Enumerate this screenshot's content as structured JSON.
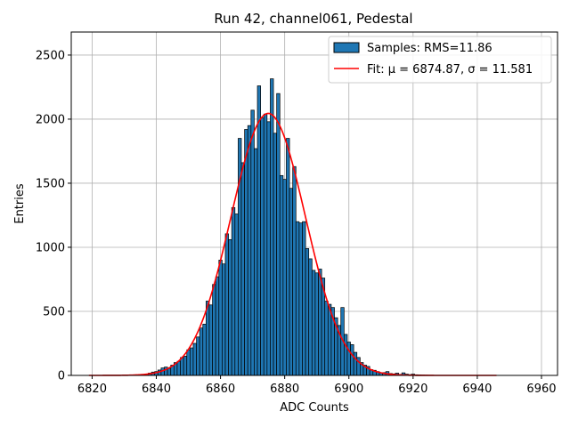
{
  "chart_data": {
    "type": "bar",
    "title": "Run 42, channel061, Pedestal",
    "xlabel": "ADC Counts",
    "ylabel": "Entries",
    "xlim": [
      6813.5,
      6965
    ],
    "ylim": [
      0,
      2680
    ],
    "xticks": [
      6820,
      6840,
      6860,
      6880,
      6900,
      6920,
      6940,
      6960
    ],
    "yticks": [
      0,
      500,
      1000,
      1500,
      2000,
      2500
    ],
    "grid": true,
    "legend_position": "top-right",
    "bin_width": 1,
    "histogram": {
      "name": "Samples: RMS=11.86",
      "color": "#1f77b4",
      "edge_color": "#000000",
      "bins": [
        [
          6835,
          5
        ],
        [
          6836,
          8
        ],
        [
          6837,
          10
        ],
        [
          6838,
          18
        ],
        [
          6839,
          26
        ],
        [
          6840,
          30
        ],
        [
          6841,
          42
        ],
        [
          6842,
          58
        ],
        [
          6843,
          65
        ],
        [
          6844,
          55
        ],
        [
          6845,
          80
        ],
        [
          6846,
          100
        ],
        [
          6847,
          110
        ],
        [
          6848,
          140
        ],
        [
          6849,
          150
        ],
        [
          6850,
          200
        ],
        [
          6851,
          215
        ],
        [
          6852,
          250
        ],
        [
          6853,
          300
        ],
        [
          6854,
          370
        ],
        [
          6855,
          400
        ],
        [
          6856,
          580
        ],
        [
          6857,
          550
        ],
        [
          6858,
          710
        ],
        [
          6859,
          770
        ],
        [
          6860,
          900
        ],
        [
          6861,
          870
        ],
        [
          6862,
          1105
        ],
        [
          6863,
          1060
        ],
        [
          6864,
          1310
        ],
        [
          6865,
          1260
        ],
        [
          6866,
          1850
        ],
        [
          6867,
          1660
        ],
        [
          6868,
          1920
        ],
        [
          6869,
          1950
        ],
        [
          6870,
          2070
        ],
        [
          6871,
          1770
        ],
        [
          6872,
          2260
        ],
        [
          6873,
          2010
        ],
        [
          6874,
          2040
        ],
        [
          6875,
          1980
        ],
        [
          6876,
          2315
        ],
        [
          6877,
          1890
        ],
        [
          6878,
          2200
        ],
        [
          6879,
          1560
        ],
        [
          6880,
          1530
        ],
        [
          6881,
          1850
        ],
        [
          6882,
          1460
        ],
        [
          6883,
          1630
        ],
        [
          6884,
          1200
        ],
        [
          6885,
          1190
        ],
        [
          6886,
          1200
        ],
        [
          6887,
          990
        ],
        [
          6888,
          910
        ],
        [
          6889,
          820
        ],
        [
          6890,
          800
        ],
        [
          6891,
          830
        ],
        [
          6892,
          760
        ],
        [
          6893,
          580
        ],
        [
          6894,
          555
        ],
        [
          6895,
          530
        ],
        [
          6896,
          450
        ],
        [
          6897,
          390
        ],
        [
          6898,
          530
        ],
        [
          6899,
          320
        ],
        [
          6900,
          260
        ],
        [
          6901,
          240
        ],
        [
          6902,
          180
        ],
        [
          6903,
          140
        ],
        [
          6904,
          100
        ],
        [
          6905,
          80
        ],
        [
          6906,
          70
        ],
        [
          6907,
          45
        ],
        [
          6908,
          40
        ],
        [
          6909,
          30
        ],
        [
          6910,
          20
        ],
        [
          6911,
          22
        ],
        [
          6912,
          30
        ],
        [
          6913,
          15
        ],
        [
          6914,
          12
        ],
        [
          6915,
          18
        ],
        [
          6916,
          8
        ],
        [
          6917,
          20
        ],
        [
          6918,
          10
        ],
        [
          6919,
          6
        ],
        [
          6920,
          10
        ],
        [
          6921,
          5
        ],
        [
          6922,
          4
        ],
        [
          6923,
          3
        ],
        [
          6924,
          2
        ]
      ]
    },
    "fit": {
      "name": "Fit: μ = 6874.87, σ = 11.581",
      "type": "gaussian",
      "mu": 6874.87,
      "sigma": 11.581,
      "amplitude": 2045,
      "x_range": [
        6819,
        6946
      ],
      "color": "#ff0000"
    }
  }
}
